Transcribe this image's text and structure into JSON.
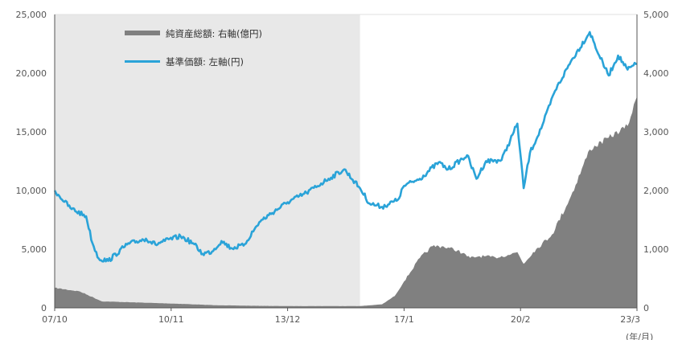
{
  "chart_data": {
    "type": "line",
    "title": "",
    "x_tick_labels": [
      "07/10",
      "10/11",
      "13/12",
      "17/1",
      "20/2",
      "23/3"
    ],
    "x_unit_label": "(年/月)",
    "left_axis": {
      "ylim": [
        0,
        25000
      ],
      "tick_labels": [
        "0",
        "5,000",
        "10,000",
        "15,000",
        "20,000",
        "25,000"
      ]
    },
    "right_axis": {
      "ylim": [
        0,
        5000
      ],
      "tick_labels": [
        "0",
        "1,000",
        "2,000",
        "3,000",
        "4,000",
        "5,000"
      ]
    },
    "shaded_period": {
      "from": "2007-10",
      "to": "2015-11",
      "color": "#e8e8e8"
    },
    "legend": {
      "position": "top-left",
      "net_assets_label": "純資産総額: 右軸(億円)",
      "nav_label": "基準価額: 左軸(円)"
    },
    "series": [
      {
        "name": "純資産総額: 右軸(億円)",
        "axis": "right",
        "kind": "area",
        "color": "#808080",
        "points": [
          [
            "2007-10",
            340
          ],
          [
            "2008-06",
            280
          ],
          [
            "2009-01",
            110
          ],
          [
            "2010-01",
            90
          ],
          [
            "2011-01",
            70
          ],
          [
            "2012-01",
            45
          ],
          [
            "2013-01",
            35
          ],
          [
            "2014-01",
            30
          ],
          [
            "2015-01",
            30
          ],
          [
            "2015-11",
            30
          ],
          [
            "2016-06",
            60
          ],
          [
            "2016-10",
            200
          ],
          [
            "2017-01",
            450
          ],
          [
            "2017-06",
            850
          ],
          [
            "2017-10",
            1050
          ],
          [
            "2018-01",
            1050
          ],
          [
            "2018-06",
            980
          ],
          [
            "2018-10",
            850
          ],
          [
            "2019-01",
            880
          ],
          [
            "2019-06",
            860
          ],
          [
            "2019-10",
            900
          ],
          [
            "2020-01",
            950
          ],
          [
            "2020-03",
            750
          ],
          [
            "2020-06",
            950
          ],
          [
            "2020-12",
            1250
          ],
          [
            "2021-06",
            1900
          ],
          [
            "2021-12",
            2700
          ],
          [
            "2022-06",
            2900
          ],
          [
            "2022-12",
            3100
          ],
          [
            "2023-03",
            3600
          ]
        ]
      },
      {
        "name": "基準価額: 左軸(円)",
        "axis": "left",
        "kind": "line",
        "color": "#2aa3d8",
        "points": [
          [
            "2007-10",
            10000
          ],
          [
            "2008-03",
            8500
          ],
          [
            "2008-08",
            7800
          ],
          [
            "2008-10",
            5500
          ],
          [
            "2008-12",
            4200
          ],
          [
            "2009-03",
            4000
          ],
          [
            "2009-09",
            5400
          ],
          [
            "2010-03",
            5900
          ],
          [
            "2010-06",
            5400
          ],
          [
            "2010-09",
            5700
          ],
          [
            "2011-02",
            6100
          ],
          [
            "2011-06",
            5500
          ],
          [
            "2011-09",
            4600
          ],
          [
            "2011-12",
            4800
          ],
          [
            "2012-03",
            5700
          ],
          [
            "2012-06",
            5100
          ],
          [
            "2012-10",
            5300
          ],
          [
            "2013-03",
            7300
          ],
          [
            "2013-06",
            7900
          ],
          [
            "2013-12",
            9000
          ],
          [
            "2014-06",
            9800
          ],
          [
            "2015-01",
            11000
          ],
          [
            "2015-06",
            11800
          ],
          [
            "2015-11",
            10200
          ],
          [
            "2016-02",
            8900
          ],
          [
            "2016-06",
            8600
          ],
          [
            "2016-11",
            9200
          ],
          [
            "2017-01",
            10400
          ],
          [
            "2017-06",
            11000
          ],
          [
            "2017-12",
            12400
          ],
          [
            "2018-03",
            11800
          ],
          [
            "2018-09",
            13000
          ],
          [
            "2018-12",
            11000
          ],
          [
            "2019-03",
            12500
          ],
          [
            "2019-08",
            12600
          ],
          [
            "2020-01",
            15700
          ],
          [
            "2020-03",
            10200
          ],
          [
            "2020-05",
            13200
          ],
          [
            "2020-09",
            15600
          ],
          [
            "2021-01",
            18500
          ],
          [
            "2021-06",
            21000
          ],
          [
            "2021-12",
            23500
          ],
          [
            "2022-03",
            21500
          ],
          [
            "2022-06",
            19800
          ],
          [
            "2022-09",
            21500
          ],
          [
            "2022-12",
            20300
          ],
          [
            "2023-03",
            20800
          ]
        ]
      }
    ]
  }
}
